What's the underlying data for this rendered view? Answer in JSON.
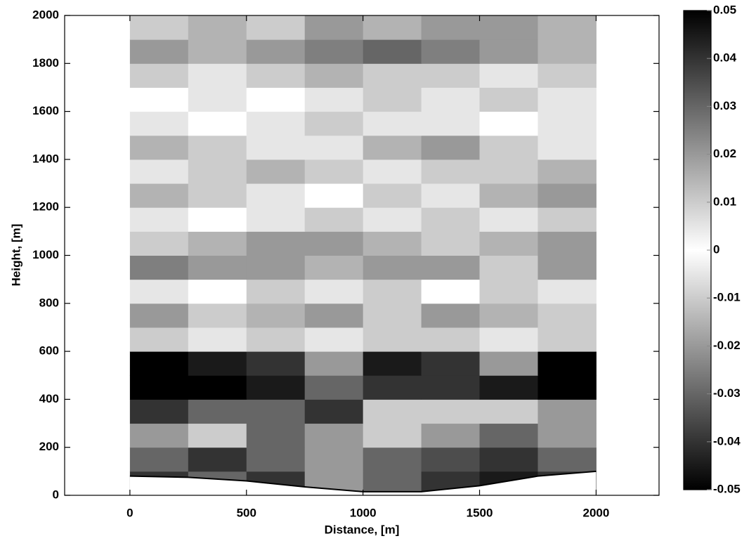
{
  "chart_data": {
    "type": "heatmap",
    "xlabel": "Distance, [m]",
    "ylabel": "Height, [m]",
    "xlim": [
      -280,
      2270
    ],
    "ylim": [
      0,
      2000
    ],
    "xticks": [
      0,
      500,
      1000,
      1500,
      2000
    ],
    "yticks": [
      0,
      200,
      400,
      600,
      800,
      1000,
      1200,
      1400,
      1600,
      1800,
      2000
    ],
    "columns": [
      0,
      250,
      500,
      750,
      1000,
      1250,
      1500,
      1750,
      2000
    ],
    "rows": [
      0,
      100,
      200,
      300,
      400,
      500,
      600,
      700,
      800,
      900,
      1000,
      1100,
      1200,
      1300,
      1400,
      1500,
      1600,
      1700,
      1800,
      1900,
      2000
    ],
    "values": [
      [
        0.04,
        0.03,
        0.04,
        0.02,
        0.03,
        0.04,
        0.045,
        0.04
      ],
      [
        0.03,
        0.04,
        0.03,
        0.02,
        0.03,
        0.035,
        0.04,
        0.03
      ],
      [
        0.02,
        0.01,
        -0.03,
        0.02,
        0.01,
        0.02,
        0.03,
        0.02
      ],
      [
        0.04,
        0.03,
        0.03,
        0.04,
        0.01,
        0.01,
        0.01,
        0.02
      ],
      [
        0.05,
        0.05,
        0.045,
        0.03,
        0.04,
        0.04,
        0.045,
        0.05
      ],
      [
        0.05,
        0.045,
        0.04,
        0.02,
        0.045,
        0.04,
        0.02,
        0.05
      ],
      [
        0.01,
        0.005,
        0.01,
        -0.005,
        0.01,
        0.01,
        0.005,
        0.01
      ],
      [
        0.02,
        0.01,
        0.015,
        0.02,
        0.01,
        0.02,
        0.015,
        0.01
      ],
      [
        0.005,
        0,
        0.01,
        0.005,
        0.01,
        0,
        0.01,
        0.005
      ],
      [
        0.025,
        0.02,
        0.02,
        0.015,
        0.02,
        0.02,
        0.01,
        0.02
      ],
      [
        0.01,
        0.015,
        0.02,
        0.02,
        0.015,
        0.01,
        0.015,
        0.02
      ],
      [
        0.005,
        0,
        0.005,
        0.01,
        0.005,
        0.01,
        0.005,
        0.01
      ],
      [
        0.015,
        0.01,
        0.005,
        0,
        0.01,
        0.005,
        0.015,
        0.02
      ],
      [
        0.005,
        0.01,
        0.015,
        0.01,
        0.005,
        0.01,
        0.01,
        0.015
      ],
      [
        0.015,
        0.01,
        0.005,
        0.005,
        0.015,
        0.02,
        0.01,
        0.005
      ],
      [
        0.005,
        0,
        0.005,
        0.01,
        0.005,
        0.005,
        0,
        0.005
      ],
      [
        0,
        0.005,
        0,
        0.005,
        0.01,
        0.005,
        0.01,
        0.005
      ],
      [
        0.01,
        0.005,
        0.01,
        0.015,
        0.01,
        0.01,
        0.005,
        0.01
      ],
      [
        0.02,
        0.015,
        0.02,
        0.025,
        0.03,
        0.025,
        0.02,
        0.015
      ],
      [
        0.01,
        0.015,
        0.01,
        0.02,
        0.015,
        0.02,
        0.02,
        0.015
      ]
    ],
    "terrain": {
      "x": [
        0,
        250,
        500,
        750,
        1000,
        1250,
        1500,
        1750,
        2000
      ],
      "y": [
        80,
        75,
        60,
        35,
        15,
        15,
        40,
        80,
        100
      ]
    },
    "clim": [
      -0.05,
      0.05
    ],
    "cticks": [
      -0.05,
      -0.04,
      -0.03,
      -0.02,
      -0.01,
      0,
      0.01,
      0.02,
      0.03,
      0.04,
      0.05
    ],
    "colormap": [
      "#000000",
      "#ffffff",
      "#000000"
    ]
  }
}
